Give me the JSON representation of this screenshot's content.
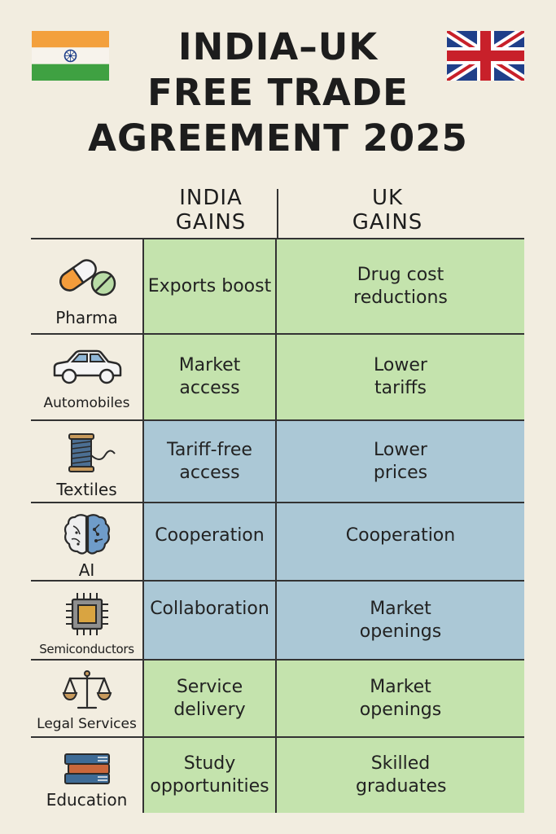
{
  "title": {
    "line1": "INDIA–UK",
    "line2": "FREE TRADE",
    "line3": "AGREEMENT 2025"
  },
  "columns": {
    "india": [
      "INDIA",
      "GAINS"
    ],
    "uk": [
      "UK",
      "GAINS"
    ]
  },
  "rows": [
    {
      "sector": "Pharma",
      "icon": "pill-icon",
      "india": "Exports boost",
      "uk": "Drug cost reductions",
      "color": "#c4e3ad"
    },
    {
      "sector": "Automobiles",
      "icon": "car-icon",
      "india": "Market access",
      "uk": "Lower tariffs",
      "color": "#c4e3ad"
    },
    {
      "sector": "Textiles",
      "icon": "thread-spool-icon",
      "india": "Tariff-free access",
      "uk": "Lower prices",
      "color": "#abc8d6"
    },
    {
      "sector": "AI",
      "icon": "brain-icon",
      "india": "Cooperation",
      "uk": "Cooperation",
      "color": "#abc8d6"
    },
    {
      "sector": "Semiconductors",
      "icon": "chip-icon",
      "india": "Collaboration",
      "uk": "Market openings",
      "color": "#abc8d6"
    },
    {
      "sector": "Legal Services",
      "icon": "scales-icon",
      "india": "Service delivery",
      "uk": "Market openings",
      "color": "#c4e3ad"
    },
    {
      "sector": "Education",
      "icon": "books-icon",
      "india": "Study opportunities",
      "uk": "Skilled graduates",
      "color": "#c4e3ad"
    }
  ],
  "colors": {
    "background": "#f2ede0",
    "green": "#c4e3ad",
    "blue": "#abc8d6",
    "saffron": "#f39c3b",
    "india_green": "#3a9a3a",
    "uk_blue": "#1f3f8a",
    "uk_red": "#c8202a"
  }
}
